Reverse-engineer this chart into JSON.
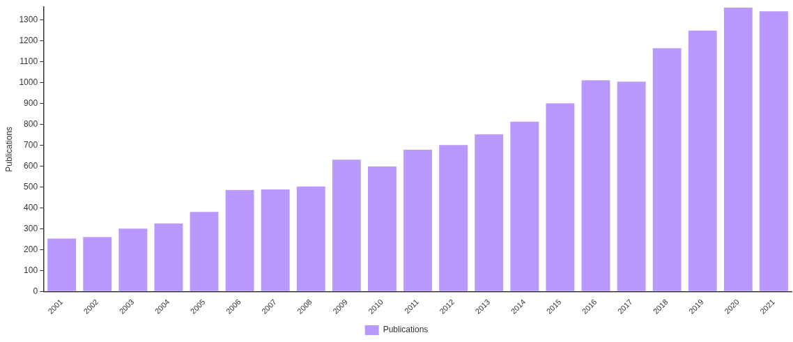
{
  "chart_data": {
    "type": "bar",
    "ylabel": "Publications",
    "categories": [
      "2001",
      "2002",
      "2003",
      "2004",
      "2005",
      "2006",
      "2007",
      "2008",
      "2009",
      "2010",
      "2011",
      "2012",
      "2013",
      "2014",
      "2015",
      "2016",
      "2017",
      "2018",
      "2019",
      "2020",
      "2021"
    ],
    "series": [
      {
        "name": "Publications",
        "color": "#b999fd",
        "values": [
          253,
          260,
          300,
          325,
          380,
          485,
          488,
          502,
          630,
          598,
          678,
          700,
          752,
          812,
          900,
          1010,
          1003,
          1163,
          1247,
          1357,
          1340
        ]
      }
    ],
    "ylim": [
      0,
      1360
    ],
    "yticks": [
      0,
      100,
      200,
      300,
      400,
      500,
      600,
      700,
      800,
      900,
      1000,
      1100,
      1200,
      1300
    ],
    "grid": false,
    "legend": "bottom"
  }
}
